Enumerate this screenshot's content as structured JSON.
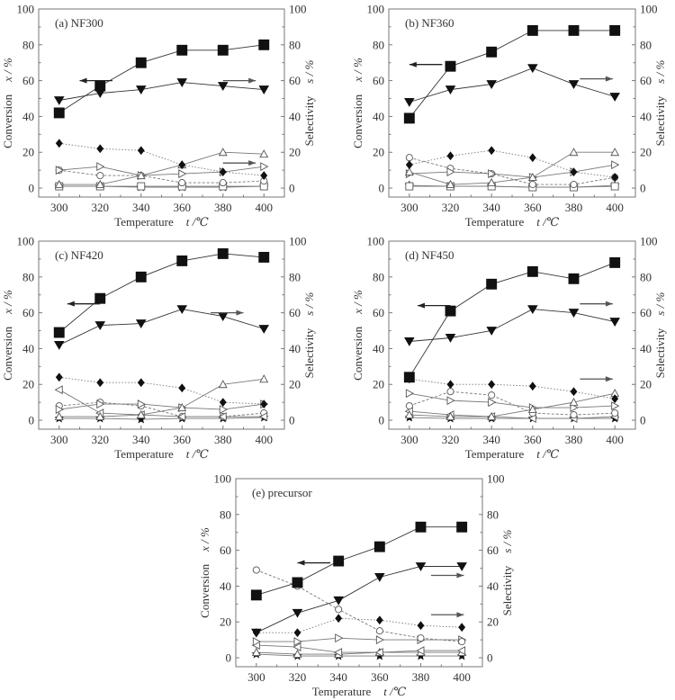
{
  "figure": {
    "x_label": "Temperature",
    "x_unit": "t /℃",
    "y_left_label": "Conversion",
    "y_left_unit": "x / %",
    "y_right_label": "Selectivity",
    "y_right_unit": "s / %"
  },
  "chart_data": [
    {
      "type": "line",
      "title": "(a) NF300",
      "xlabel": "Temperature t /℃",
      "ylabel": "Conversion x / %",
      "y2label": "Selectivity s / %",
      "x": [
        300,
        320,
        340,
        360,
        380,
        400
      ],
      "xlim": [
        290,
        410
      ],
      "ylim": [
        -5,
        100
      ],
      "xticks": [
        300,
        320,
        340,
        360,
        380,
        400
      ],
      "yticks": [
        0,
        20,
        40,
        60,
        80,
        100
      ],
      "grid": false,
      "series": [
        {
          "name": "conversion",
          "marker": "square-filled",
          "style": "solid",
          "axis": "left",
          "values": [
            42,
            57,
            70,
            77,
            77,
            80
          ]
        },
        {
          "name": "selectivity-1",
          "marker": "triangle-down-filled",
          "style": "solid",
          "axis": "right",
          "values": [
            49,
            53,
            55,
            59,
            57,
            55
          ]
        },
        {
          "name": "selectivity-2",
          "marker": "diamond-filled",
          "style": "dotted",
          "axis": "right",
          "values": [
            25,
            22,
            21,
            13,
            9,
            7
          ]
        },
        {
          "name": "selectivity-3",
          "marker": "triangle-up-open",
          "style": "solid",
          "axis": "right",
          "values": [
            2,
            2,
            7,
            13,
            20,
            19
          ]
        },
        {
          "name": "selectivity-4",
          "marker": "triangle-right-open",
          "style": "solid",
          "axis": "right",
          "values": [
            10,
            12,
            7,
            8,
            9,
            12
          ]
        },
        {
          "name": "selectivity-5",
          "marker": "circle-open",
          "style": "dashed",
          "axis": "right",
          "values": [
            10,
            7,
            7,
            3,
            3,
            4
          ]
        },
        {
          "name": "selectivity-6",
          "marker": "square-open",
          "style": "solid",
          "axis": "right",
          "values": [
            1,
            1,
            1,
            1,
            1,
            1
          ]
        },
        {
          "name": "selectivity-7",
          "marker": "star-filled",
          "style": "solid",
          "axis": "right",
          "values": [
            1,
            1,
            0.5,
            0.5,
            0.5,
            1
          ]
        }
      ],
      "annotations": [
        {
          "type": "arrow",
          "direction": "left",
          "points_to": "conversion axis",
          "near_y": 60,
          "x_from": 326,
          "x_to": 310
        },
        {
          "type": "arrow",
          "direction": "right",
          "points_to": "selectivity axis",
          "near_y": 60,
          "x_from": 380,
          "x_to": 396
        },
        {
          "type": "arrow",
          "direction": "right",
          "points_to": "selectivity axis",
          "near_y": 14,
          "x_from": 380,
          "x_to": 396
        }
      ]
    },
    {
      "type": "line",
      "title": "(b) NF360",
      "xlabel": "Temperature t /℃",
      "ylabel": "Conversion x / %",
      "y2label": "Selectivity s / %",
      "x": [
        300,
        320,
        340,
        360,
        380,
        400
      ],
      "xlim": [
        290,
        410
      ],
      "ylim": [
        -5,
        100
      ],
      "xticks": [
        300,
        320,
        340,
        360,
        380,
        400
      ],
      "yticks": [
        0,
        20,
        40,
        60,
        80,
        100
      ],
      "grid": false,
      "series": [
        {
          "name": "conversion",
          "marker": "square-filled",
          "style": "solid",
          "axis": "left",
          "values": [
            39,
            68,
            76,
            88,
            88,
            88
          ]
        },
        {
          "name": "selectivity-1",
          "marker": "triangle-down-filled",
          "style": "solid",
          "axis": "right",
          "values": [
            48,
            55,
            58,
            67,
            58,
            51
          ]
        },
        {
          "name": "selectivity-2",
          "marker": "diamond-filled",
          "style": "dotted",
          "axis": "right",
          "values": [
            13,
            18,
            21,
            17,
            9,
            6
          ]
        },
        {
          "name": "selectivity-3",
          "marker": "triangle-up-open",
          "style": "solid",
          "axis": "right",
          "values": [
            9,
            2,
            3,
            6,
            20,
            20
          ]
        },
        {
          "name": "selectivity-4",
          "marker": "triangle-right-open",
          "style": "solid",
          "axis": "right",
          "values": [
            8,
            9,
            8,
            6,
            9,
            13
          ]
        },
        {
          "name": "selectivity-5",
          "marker": "circle-open",
          "style": "dashed",
          "axis": "right",
          "values": [
            17,
            11,
            8,
            2,
            2,
            6
          ]
        },
        {
          "name": "selectivity-6",
          "marker": "square-open",
          "style": "solid",
          "axis": "right",
          "values": [
            1,
            1,
            1,
            0.5,
            0.5,
            1
          ]
        },
        {
          "name": "selectivity-7",
          "marker": "star-filled",
          "style": "solid",
          "axis": "right",
          "values": [
            1.5,
            1,
            1,
            0.5,
            0.5,
            1.5
          ]
        }
      ],
      "annotations": [
        {
          "type": "arrow",
          "direction": "left",
          "points_to": "conversion axis",
          "near_y": 69,
          "x_from": 316,
          "x_to": 300
        },
        {
          "type": "arrow",
          "direction": "right",
          "points_to": "selectivity axis",
          "near_y": 61,
          "x_from": 383,
          "x_to": 399
        }
      ]
    },
    {
      "type": "line",
      "title": "(c) NF420",
      "xlabel": "Temperature t /℃",
      "ylabel": "Conversion x / %",
      "y2label": "Selectivity s / %",
      "x": [
        300,
        320,
        340,
        360,
        380,
        400
      ],
      "xlim": [
        290,
        410
      ],
      "ylim": [
        -5,
        100
      ],
      "xticks": [
        300,
        320,
        340,
        360,
        380,
        400
      ],
      "yticks": [
        0,
        20,
        40,
        60,
        80,
        100
      ],
      "grid": false,
      "series": [
        {
          "name": "conversion",
          "marker": "square-filled",
          "style": "solid",
          "axis": "left",
          "values": [
            49,
            68,
            80,
            89,
            93,
            91
          ]
        },
        {
          "name": "selectivity-1",
          "marker": "triangle-down-filled",
          "style": "solid",
          "axis": "right",
          "values": [
            42,
            53,
            54,
            62,
            58,
            51
          ]
        },
        {
          "name": "selectivity-2",
          "marker": "diamond-filled",
          "style": "dotted",
          "axis": "right",
          "values": [
            24,
            21,
            21,
            18,
            10,
            9
          ]
        },
        {
          "name": "selectivity-3",
          "marker": "triangle-up-open",
          "style": "solid",
          "axis": "right",
          "values": [
            2,
            2,
            3,
            7,
            20,
            23
          ]
        },
        {
          "name": "selectivity-4",
          "marker": "triangle-left-open",
          "style": "solid",
          "axis": "right",
          "values": [
            17,
            4,
            3,
            2,
            2,
            2
          ]
        },
        {
          "name": "selectivity-5",
          "marker": "triangle-right-open",
          "style": "solid",
          "axis": "right",
          "values": [
            6,
            9,
            9,
            7,
            6,
            9
          ]
        },
        {
          "name": "selectivity-6",
          "marker": "circle-open",
          "style": "dashed",
          "axis": "right",
          "values": [
            8,
            10,
            8,
            2,
            2,
            4
          ]
        },
        {
          "name": "selectivity-7",
          "marker": "star-filled",
          "style": "solid",
          "axis": "right",
          "values": [
            1,
            1,
            0.5,
            1,
            1,
            1.5
          ]
        }
      ],
      "annotations": [
        {
          "type": "arrow",
          "direction": "left",
          "points_to": "conversion axis",
          "near_y": 65,
          "x_from": 320,
          "x_to": 304
        },
        {
          "type": "arrow",
          "direction": "right",
          "points_to": "selectivity axis",
          "near_y": 60,
          "x_from": 374,
          "x_to": 390
        }
      ]
    },
    {
      "type": "line",
      "title": "(d) NF450",
      "xlabel": "Temperature t /℃",
      "ylabel": "Conversion x / %",
      "y2label": "Selectivity s / %",
      "x": [
        300,
        320,
        340,
        360,
        380,
        400
      ],
      "xlim": [
        290,
        410
      ],
      "ylim": [
        -5,
        100
      ],
      "xticks": [
        300,
        320,
        340,
        360,
        380,
        400
      ],
      "yticks": [
        0,
        20,
        40,
        60,
        80,
        100
      ],
      "grid": false,
      "series": [
        {
          "name": "conversion",
          "marker": "square-filled",
          "style": "solid",
          "axis": "left",
          "values": [
            24,
            61,
            76,
            83,
            79,
            88
          ]
        },
        {
          "name": "selectivity-1",
          "marker": "triangle-down-filled",
          "style": "solid",
          "axis": "right",
          "values": [
            44,
            46,
            50,
            62,
            60,
            55
          ]
        },
        {
          "name": "selectivity-2",
          "marker": "diamond-filled",
          "style": "dotted",
          "axis": "right",
          "values": [
            23,
            20,
            20,
            19,
            16,
            12
          ]
        },
        {
          "name": "selectivity-3",
          "marker": "triangle-up-open",
          "style": "solid",
          "axis": "right",
          "values": [
            3,
            2,
            2,
            6,
            10,
            15
          ]
        },
        {
          "name": "selectivity-4",
          "marker": "triangle-right-open",
          "style": "solid",
          "axis": "right",
          "values": [
            15,
            11,
            10,
            7,
            7,
            8
          ]
        },
        {
          "name": "selectivity-5",
          "marker": "circle-open",
          "style": "dashed",
          "axis": "right",
          "values": [
            8,
            16,
            14,
            4,
            3,
            4
          ]
        },
        {
          "name": "selectivity-6",
          "marker": "triangle-left-open",
          "style": "solid",
          "axis": "right",
          "values": [
            5,
            3,
            2,
            1,
            1,
            2
          ]
        },
        {
          "name": "selectivity-7",
          "marker": "star-filled",
          "style": "solid",
          "axis": "right",
          "values": [
            1.5,
            1,
            1,
            1,
            1,
            1
          ]
        }
      ],
      "annotations": [
        {
          "type": "arrow",
          "direction": "left",
          "points_to": "conversion axis",
          "near_y": 64,
          "x_from": 320,
          "x_to": 304
        },
        {
          "type": "arrow",
          "direction": "right",
          "points_to": "selectivity axis",
          "near_y": 65,
          "x_from": 383,
          "x_to": 399
        },
        {
          "type": "arrow",
          "direction": "right",
          "points_to": "selectivity axis",
          "near_y": 23,
          "x_from": 383,
          "x_to": 399
        }
      ]
    },
    {
      "type": "line",
      "title": "(e) precursor",
      "xlabel": "Temperature t /℃",
      "ylabel": "Conversion x / %",
      "y2label": "Selectivity s / %",
      "x": [
        300,
        320,
        340,
        360,
        380,
        400
      ],
      "xlim": [
        290,
        410
      ],
      "ylim": [
        -5,
        100
      ],
      "xticks": [
        300,
        320,
        340,
        360,
        380,
        400
      ],
      "yticks": [
        0,
        20,
        40,
        60,
        80,
        100
      ],
      "grid": false,
      "series": [
        {
          "name": "conversion",
          "marker": "square-filled",
          "style": "solid",
          "axis": "left",
          "values": [
            35,
            42,
            54,
            62,
            73,
            73
          ]
        },
        {
          "name": "selectivity-1",
          "marker": "triangle-down-filled",
          "style": "solid",
          "axis": "right",
          "values": [
            14,
            25,
            32,
            45,
            51,
            51
          ]
        },
        {
          "name": "selectivity-2",
          "marker": "diamond-filled",
          "style": "dotted",
          "axis": "right",
          "values": [
            14,
            14,
            22,
            21,
            18,
            17
          ]
        },
        {
          "name": "selectivity-3",
          "marker": "circle-open",
          "style": "dashed",
          "axis": "right",
          "values": [
            49,
            40,
            27,
            15,
            11,
            9
          ]
        },
        {
          "name": "selectivity-4",
          "marker": "triangle-right-open",
          "style": "solid",
          "axis": "right",
          "values": [
            9,
            9,
            11,
            10,
            10,
            10
          ]
        },
        {
          "name": "selectivity-5",
          "marker": "triangle-left-open",
          "style": "solid",
          "axis": "right",
          "values": [
            7,
            6,
            3,
            3,
            4,
            4
          ]
        },
        {
          "name": "selectivity-6",
          "marker": "triangle-up-open",
          "style": "solid",
          "axis": "right",
          "values": [
            3,
            2,
            2,
            3,
            3,
            3
          ]
        },
        {
          "name": "selectivity-7",
          "marker": "star-filled",
          "style": "solid",
          "axis": "right",
          "values": [
            2,
            1,
            1,
            1,
            1,
            1
          ]
        }
      ],
      "annotations": [
        {
          "type": "arrow",
          "direction": "left",
          "points_to": "conversion axis",
          "near_y": 53,
          "x_from": 336,
          "x_to": 320
        },
        {
          "type": "arrow",
          "direction": "right",
          "points_to": "selectivity axis",
          "near_y": 46,
          "x_from": 385,
          "x_to": 401
        },
        {
          "type": "arrow",
          "direction": "right",
          "points_to": "selectivity axis",
          "near_y": 24,
          "x_from": 385,
          "x_to": 401
        }
      ]
    }
  ]
}
